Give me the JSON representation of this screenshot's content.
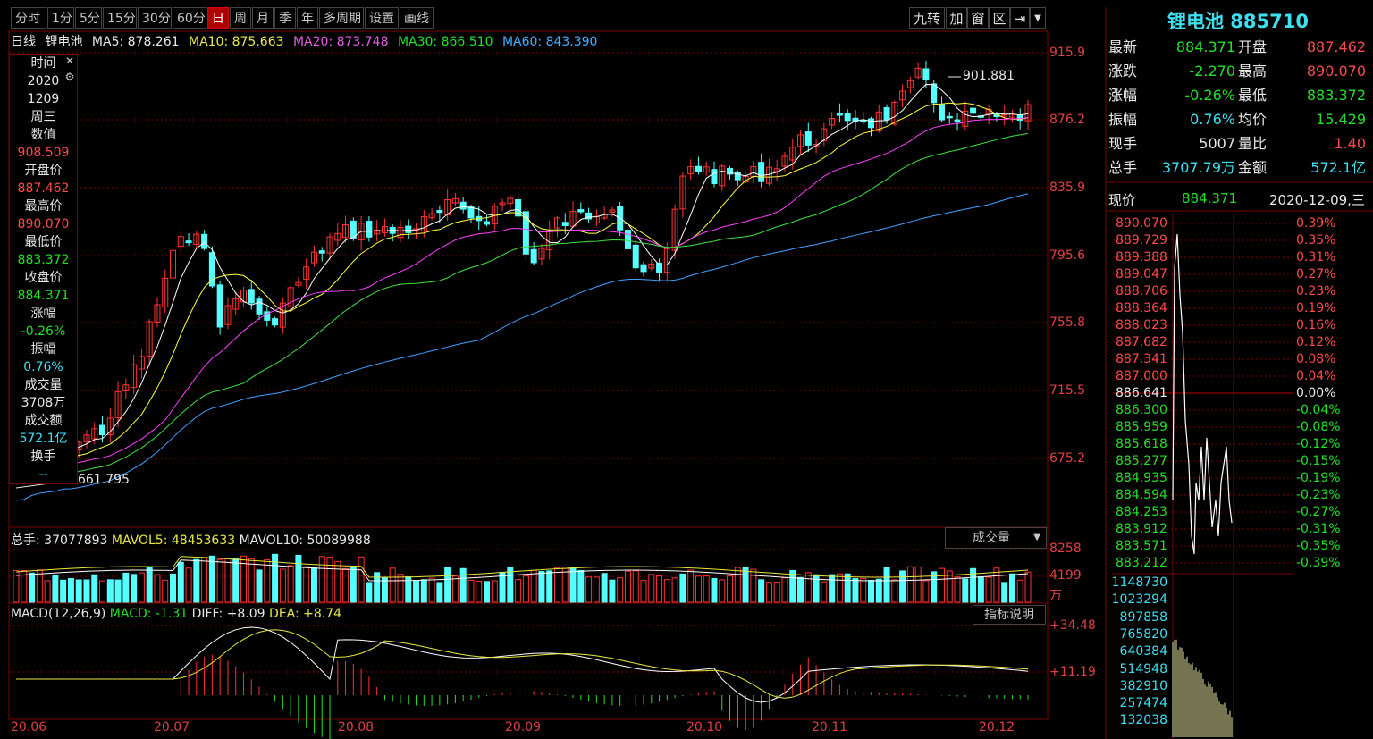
{
  "toolbar": {
    "periods": [
      "分时",
      "1分",
      "5分",
      "15分",
      "30分",
      "60分",
      "日",
      "周",
      "月",
      "季",
      "年",
      "多周期",
      "设置",
      "画线"
    ],
    "active": "日",
    "right": [
      "九转",
      "加",
      "窗",
      "区"
    ]
  },
  "ma_line": {
    "kind": "日线",
    "name": "锂电池",
    "ma5": "MA5: 878.261",
    "ma10": "MA10: 875.663",
    "ma20": "MA20: 873.748",
    "ma30": "MA30: 866.510",
    "ma60": "MA60: 843.390"
  },
  "info_panel": {
    "rows": [
      {
        "t": "时间",
        "c": "white"
      },
      {
        "t": "2020",
        "c": "white"
      },
      {
        "t": "1209",
        "c": "white"
      },
      {
        "t": "周三",
        "c": "white"
      },
      {
        "t": "数值",
        "c": "white"
      },
      {
        "t": "908.509",
        "c": "red"
      },
      {
        "t": "开盘价",
        "c": "white"
      },
      {
        "t": "887.462",
        "c": "red"
      },
      {
        "t": "最高价",
        "c": "white"
      },
      {
        "t": "890.070",
        "c": "red"
      },
      {
        "t": "最低价",
        "c": "white"
      },
      {
        "t": "883.372",
        "c": "green"
      },
      {
        "t": "收盘价",
        "c": "white"
      },
      {
        "t": "884.371",
        "c": "green"
      },
      {
        "t": "涨幅",
        "c": "white"
      },
      {
        "t": "-0.26%",
        "c": "green"
      },
      {
        "t": "振幅",
        "c": "white"
      },
      {
        "t": "0.76%",
        "c": "cyan"
      },
      {
        "t": "成交量",
        "c": "white"
      },
      {
        "t": "3708万",
        "c": "white"
      },
      {
        "t": "成交额",
        "c": "white"
      },
      {
        "t": "572.1亿",
        "c": "cyan"
      },
      {
        "t": "换手",
        "c": "white"
      },
      {
        "t": "--",
        "c": "cyan"
      }
    ]
  },
  "price_axis": [
    "915.9",
    "876.2",
    "835.9",
    "795.6",
    "755.8",
    "715.5",
    "675.2"
  ],
  "high_label": "901.881",
  "low_label": "661.795",
  "date_axis": [
    "20.06",
    "20.07",
    "20.08",
    "20.09",
    "20.10",
    "20.11",
    "20.12"
  ],
  "volume": {
    "total": "总手: 37077893",
    "mavol5": "MAVOL5: 48453633",
    "mavol10": "MAVOL10: 50089988",
    "dropdown": "成交量",
    "axis": [
      "8258",
      "4199"
    ],
    "unit": "万"
  },
  "macd": {
    "title": "MACD(12,26,9)",
    "macd": "MACD: -1.31",
    "diff": "DIFF: +8.09",
    "dea": "DEA: +8.74",
    "button": "指标说明",
    "axis": [
      "+34.48",
      "+11.19"
    ]
  },
  "right_panel": {
    "title": "锂电池 885710",
    "stats": [
      {
        "l1": "最新",
        "v1": "884.371",
        "c1": "green",
        "l2": "开盘",
        "v2": "887.462",
        "c2": "red"
      },
      {
        "l1": "涨跌",
        "v1": "-2.270",
        "c1": "green",
        "l2": "最高",
        "v2": "890.070",
        "c2": "red"
      },
      {
        "l1": "涨幅",
        "v1": "-0.26%",
        "c1": "green",
        "l2": "最低",
        "v2": "883.372",
        "c2": "green"
      },
      {
        "l1": "振幅",
        "v1": "0.76%",
        "c1": "cyan",
        "l2": "均价",
        "v2": "15.429",
        "c2": "green"
      },
      {
        "l1": "现手",
        "v1": "5007",
        "c1": "white",
        "l2": "量比",
        "v2": "1.40",
        "c2": "red"
      },
      {
        "l1": "总手",
        "v1": "3707.79万",
        "c1": "cyan",
        "l2": "金额",
        "v2": "572.1亿",
        "c2": "cyan"
      }
    ],
    "now_label": "现价",
    "now_value": "884.371",
    "now_date": "2020-12-09,三",
    "left_prices": [
      "890.070",
      "889.729",
      "889.388",
      "889.047",
      "888.706",
      "888.364",
      "888.023",
      "887.682",
      "887.341",
      "887.000",
      "886.641",
      "886.300",
      "885.959",
      "885.618",
      "885.277",
      "884.935",
      "884.594",
      "884.253",
      "883.912",
      "883.571",
      "883.212"
    ],
    "right_pcts": [
      "0.39%",
      "0.35%",
      "0.31%",
      "0.27%",
      "0.23%",
      "0.19%",
      "0.16%",
      "0.12%",
      "0.08%",
      "0.04%",
      "0.00%",
      "-0.04%",
      "-0.08%",
      "-0.12%",
      "-0.15%",
      "-0.19%",
      "-0.23%",
      "-0.27%",
      "-0.31%",
      "-0.35%",
      "-0.39%"
    ],
    "vol_axis": [
      "1148730",
      "1023294",
      "897858",
      "765820",
      "640384",
      "514948",
      "382910",
      "257474",
      "132038"
    ]
  },
  "colors": {
    "up": "#ff3232",
    "down": "#54ffff",
    "grid": "#7a0000",
    "ma5": "#ffffff",
    "ma10": "#ffff40",
    "ma20": "#ff40ff",
    "ma30": "#40e040",
    "ma60": "#40a0ff"
  }
}
